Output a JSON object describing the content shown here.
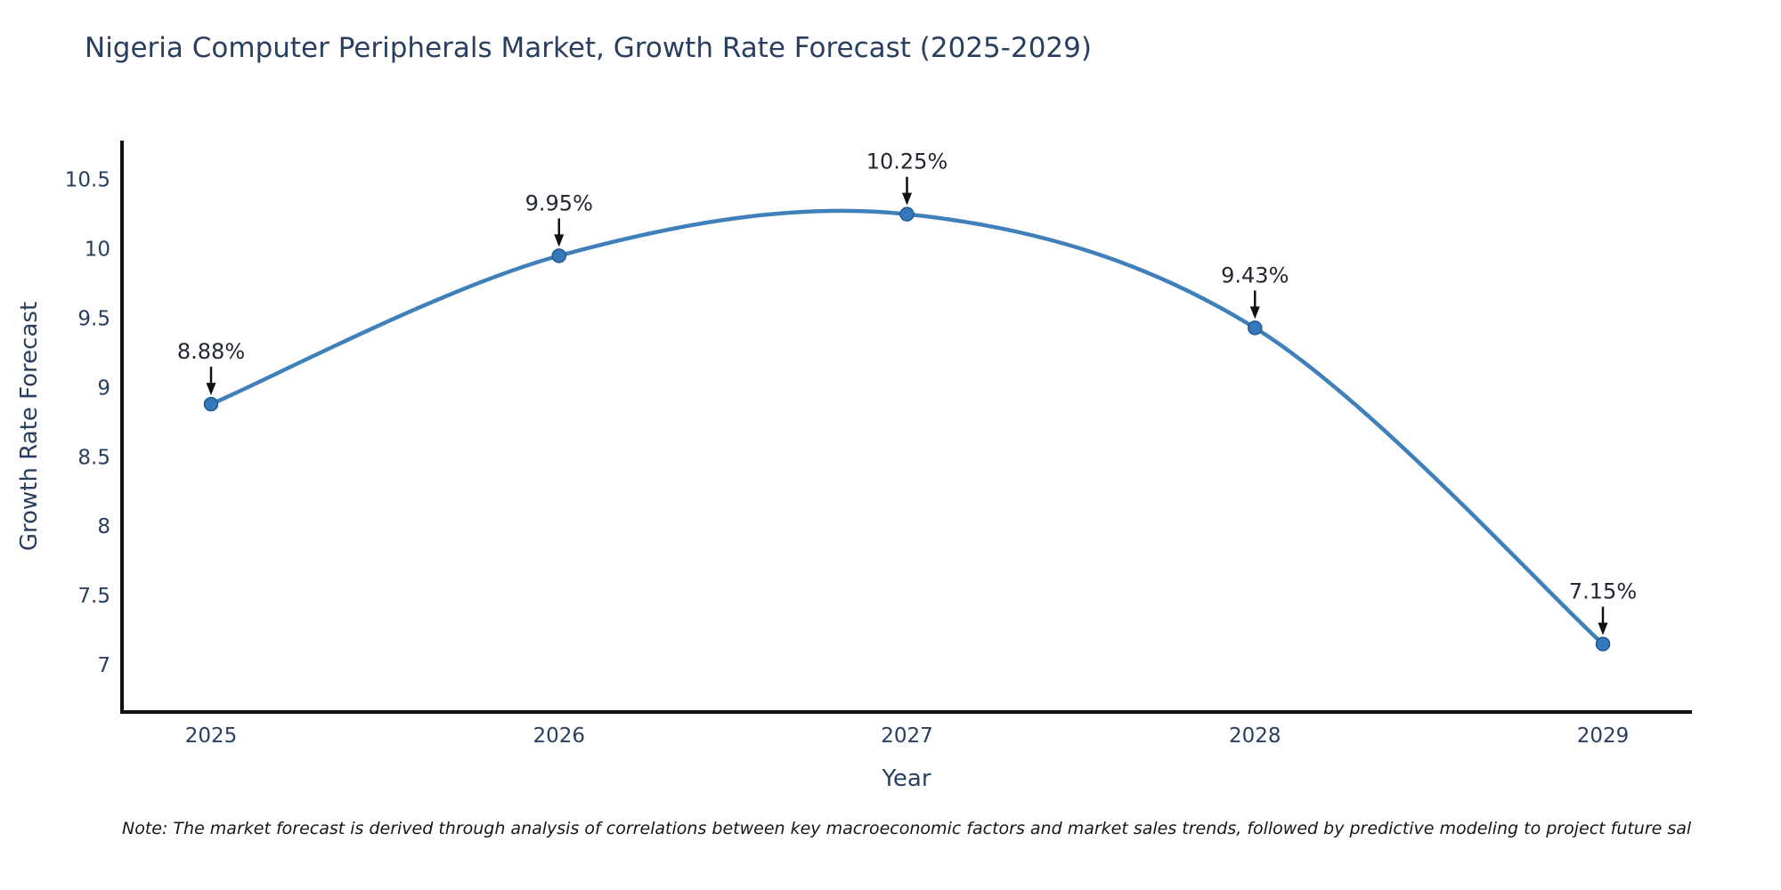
{
  "chart_data": {
    "type": "line",
    "title": "Nigeria Computer Peripherals Market, Growth Rate Forecast (2025-2029)",
    "xlabel": "Year",
    "ylabel": "Growth Rate Forecast",
    "x": [
      2025,
      2026,
      2027,
      2028,
      2029
    ],
    "x_ticks": [
      "2025",
      "2026",
      "2027",
      "2028",
      "2029"
    ],
    "y_ticks": [
      7,
      7.5,
      8,
      8.5,
      9,
      9.5,
      10,
      10.5
    ],
    "ylim": [
      6.66,
      10.78
    ],
    "series": [
      {
        "name": "Growth Rate Forecast",
        "values": [
          8.88,
          9.95,
          10.25,
          9.43,
          7.15
        ]
      }
    ],
    "point_labels": [
      "8.88%",
      "9.95%",
      "10.25%",
      "9.43%",
      "7.15%"
    ],
    "line_shape": "spline",
    "grid": false,
    "legend": "none",
    "note": "Note: The market forecast is derived through analysis of correlations between key macroeconomic factors and market sales trends, followed by predictive modeling to project future sal",
    "colors": {
      "line": "#3f7fba",
      "marker_fill": "#3579bc",
      "marker_edge": "#1f5a94",
      "axis_line": "#111111",
      "tick_text": "#2a3f5f",
      "annotation_text": "#222733",
      "annotation_arrow": "#111111",
      "title_text": "#2a3f5f",
      "background": "#ffffff"
    }
  }
}
